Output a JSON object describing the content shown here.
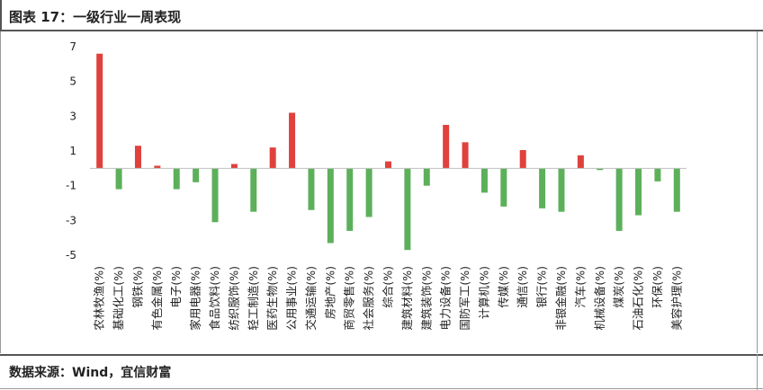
{
  "header": {
    "title": "图表 17：一级行业一周表现"
  },
  "footer": {
    "source": "数据来源：Wind，宜信财富"
  },
  "colors": {
    "positive": "#e0413c",
    "negative": "#5cb05a",
    "axis": "#bfbfbf",
    "frame": "#555555"
  },
  "chart_data": {
    "type": "bar",
    "title": "",
    "xlabel": "",
    "ylabel": "",
    "ylim": [
      -5,
      7
    ],
    "yticks": [
      7,
      5,
      3,
      1,
      -1,
      -3,
      -5
    ],
    "grid": false,
    "categories": [
      "农林牧渔(%)",
      "基础化工(%)",
      "钢铁(%)",
      "有色金属(%)",
      "电子(%)",
      "家用电器(%)",
      "食品饮料(%)",
      "纺织服饰(%)",
      "轻工制造(%)",
      "医药生物(%)",
      "公用事业(%)",
      "交通运输(%)",
      "房地产(%)",
      "商贸零售(%)",
      "社会服务(%)",
      "综合(%)",
      "建筑材料(%)",
      "建筑装饰(%)",
      "电力设备(%)",
      "国防军工(%)",
      "计算机(%)",
      "传媒(%)",
      "通信(%)",
      "银行(%)",
      "非银金融(%)",
      "汽车(%)",
      "机械设备(%)",
      "煤炭(%)",
      "石油石化(%)",
      "环保(%)",
      "美容护理(%)"
    ],
    "values": [
      6.6,
      -1.2,
      1.3,
      0.15,
      -1.2,
      -0.8,
      -3.1,
      0.25,
      -2.5,
      1.2,
      3.2,
      -2.4,
      -4.3,
      -3.6,
      -2.8,
      0.4,
      -4.7,
      -1.0,
      2.5,
      1.5,
      -1.4,
      -2.2,
      1.05,
      -2.3,
      -2.5,
      0.75,
      -0.1,
      -3.6,
      -2.7,
      -0.75,
      -2.5
    ]
  }
}
